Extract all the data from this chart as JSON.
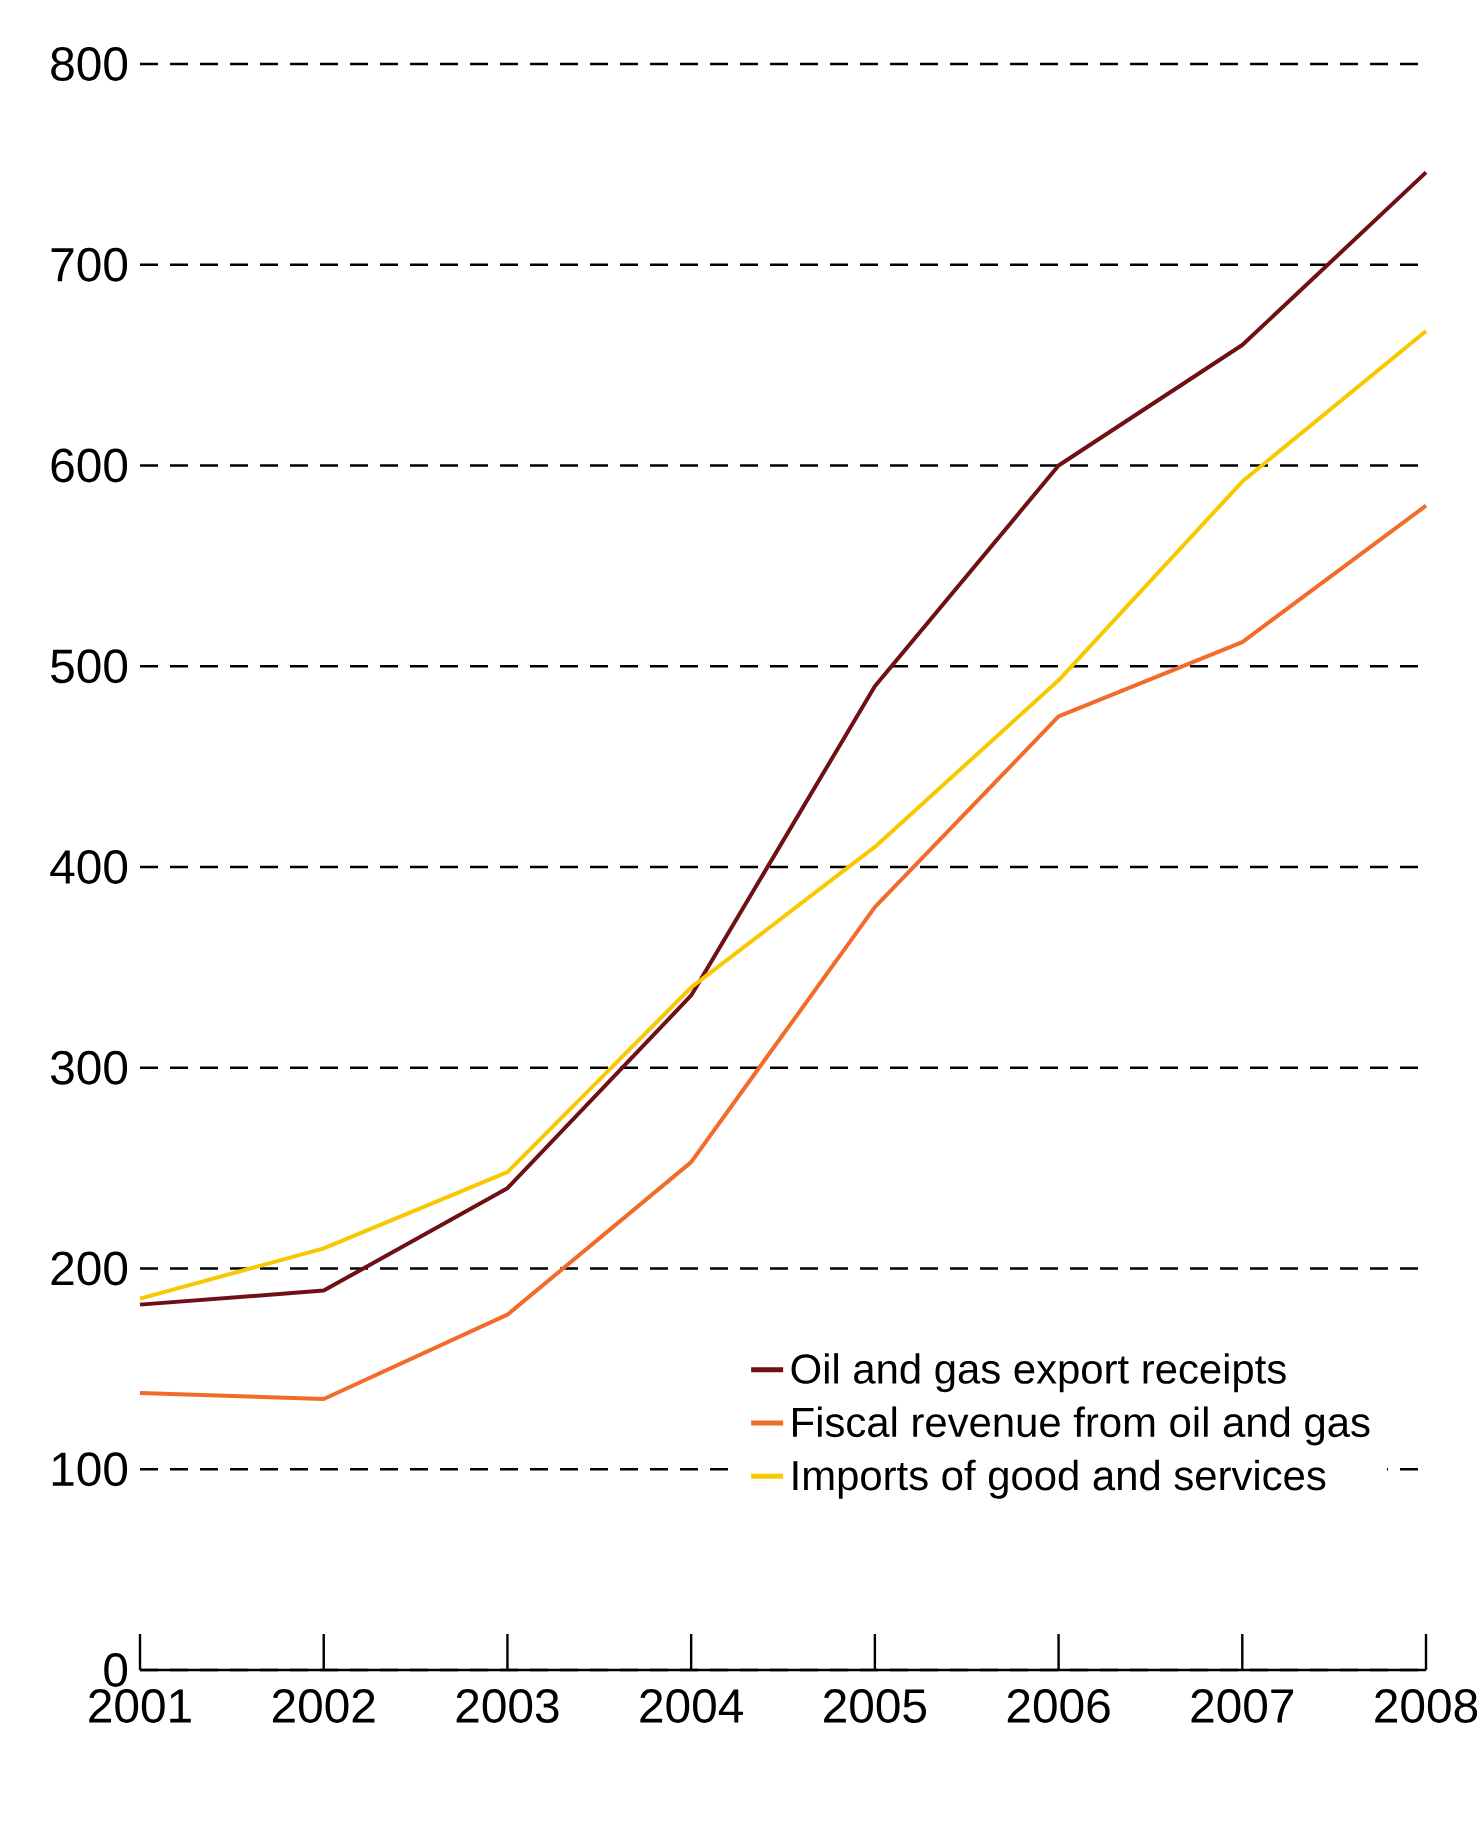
{
  "chart_data": {
    "type": "line",
    "x": [
      2001,
      2002,
      2003,
      2004,
      2005,
      2006,
      2007,
      2008
    ],
    "series": [
      {
        "name": "Oil and gas export receipts",
        "color": "#6e1016",
        "values": [
          182,
          189,
          240,
          336,
          490,
          600,
          660,
          746
        ]
      },
      {
        "name": "Fiscal revenue from oil and gas",
        "color": "#f26b2a",
        "values": [
          138,
          135,
          177,
          253,
          380,
          475,
          512,
          580
        ]
      },
      {
        "name": "Imports of good and services",
        "color": "#f8c800",
        "values": [
          185,
          210,
          248,
          340,
          410,
          493,
          592,
          667
        ]
      }
    ],
    "xlim": [
      2001,
      2008
    ],
    "xticks": [
      2001,
      2002,
      2003,
      2004,
      2005,
      2006,
      2007,
      2008
    ],
    "ylim": [
      0,
      800
    ],
    "yticks": [
      0,
      100,
      200,
      300,
      400,
      500,
      600,
      700,
      800
    ],
    "grid": "y",
    "legend": "bottom right",
    "marker": "none",
    "line_style": "solid"
  }
}
